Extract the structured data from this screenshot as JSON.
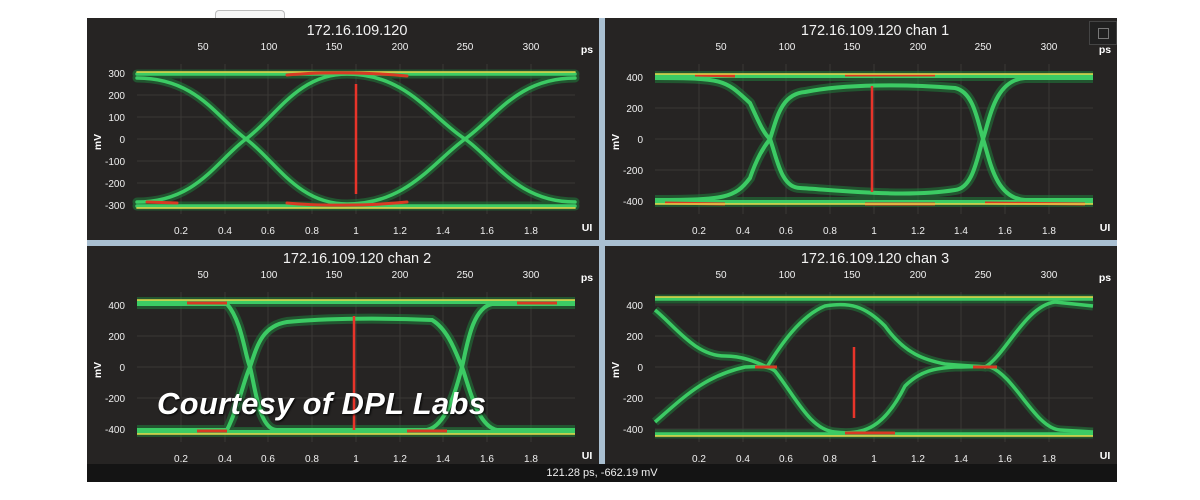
{
  "status_readout": "121.28 ps, -662.19 mV",
  "watermark": "Courtesy of DPL Labs",
  "colors": {
    "panel_bg": "#262423",
    "frame": "#a9bfd1",
    "marker": "#e8342a",
    "trace_hot": "#d83a24",
    "trace_warm": "#e8d84a",
    "trace_cool": "#2fae55"
  },
  "units": {
    "x_top": "ps",
    "x_bottom": "UI",
    "y": "mV"
  },
  "panels": [
    {
      "title": "172.16.109.120",
      "ps_ticks": [
        "50",
        "100",
        "150",
        "200",
        "250",
        "300"
      ],
      "ui_ticks": [
        "0.2",
        "0.4",
        "0.6",
        "0.8",
        "1",
        "1.2",
        "1.4",
        "1.6",
        "1.8"
      ],
      "mv_ticks": [
        "300",
        "200",
        "100",
        "0",
        "-100",
        "-200",
        "-300"
      ]
    },
    {
      "title": "172.16.109.120 chan 1",
      "ps_ticks": [
        "50",
        "100",
        "150",
        "200",
        "250",
        "300"
      ],
      "ui_ticks": [
        "0.2",
        "0.4",
        "0.6",
        "0.8",
        "1",
        "1.2",
        "1.4",
        "1.6",
        "1.8"
      ],
      "mv_ticks": [
        "400",
        "200",
        "0",
        "-200",
        "-400"
      ]
    },
    {
      "title": "172.16.109.120 chan 2",
      "ps_ticks": [
        "50",
        "100",
        "150",
        "200",
        "250",
        "300"
      ],
      "ui_ticks": [
        "0.2",
        "0.4",
        "0.6",
        "0.8",
        "1",
        "1.2",
        "1.4",
        "1.6",
        "1.8"
      ],
      "mv_ticks": [
        "400",
        "200",
        "0",
        "-200",
        "-400"
      ]
    },
    {
      "title": "172.16.109.120 chan 3",
      "ps_ticks": [
        "50",
        "100",
        "150",
        "200",
        "250",
        "300"
      ],
      "ui_ticks": [
        "0.2",
        "0.4",
        "0.6",
        "0.8",
        "1",
        "1.2",
        "1.4",
        "1.6",
        "1.8"
      ],
      "mv_ticks": [
        "400",
        "200",
        "0",
        "-200",
        "-400"
      ]
    }
  ]
}
